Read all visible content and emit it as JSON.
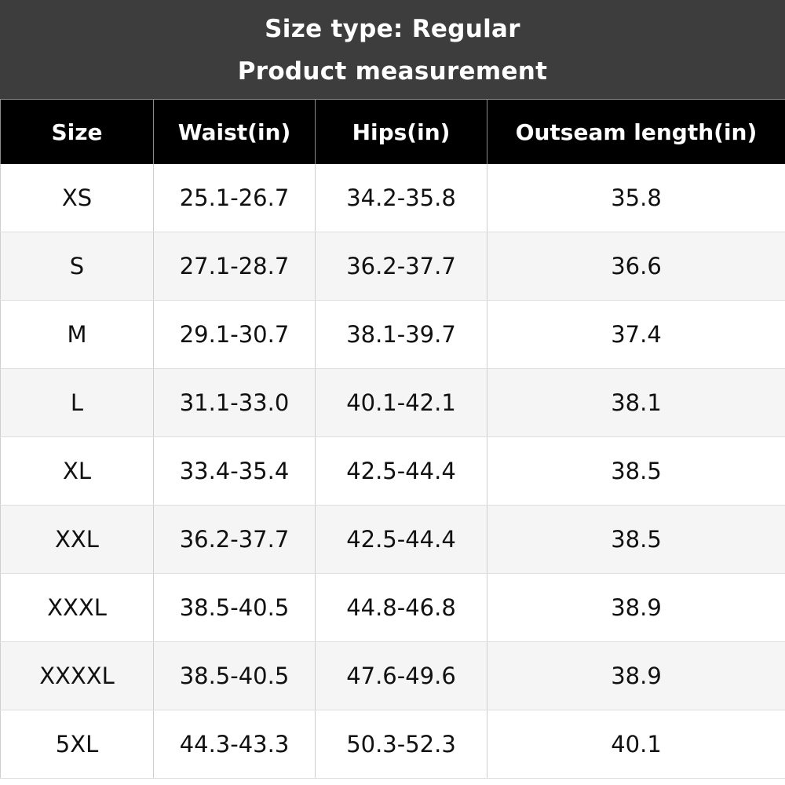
{
  "title": {
    "line1": "Size type: Regular",
    "line2": "Product measurement"
  },
  "table": {
    "headers": [
      "Size",
      "Waist(in)",
      "Hips(in)",
      "Outseam length(in)"
    ],
    "rows": [
      [
        "XS",
        "25.1-26.7",
        "34.2-35.8",
        "35.8"
      ],
      [
        "S",
        "27.1-28.7",
        "36.2-37.7",
        "36.6"
      ],
      [
        "M",
        "29.1-30.7",
        "38.1-39.7",
        "37.4"
      ],
      [
        "L",
        "31.1-33.0",
        "40.1-42.1",
        "38.1"
      ],
      [
        "XL",
        "33.4-35.4",
        "42.5-44.4",
        "38.5"
      ],
      [
        "XXL",
        "36.2-37.7",
        "42.5-44.4",
        "38.5"
      ],
      [
        "XXXL",
        "38.5-40.5",
        "44.8-46.8",
        "38.9"
      ],
      [
        "XXXXL",
        "38.5-40.5",
        "47.6-49.6",
        "38.9"
      ],
      [
        "5XL",
        "44.3-43.3",
        "50.3-52.3",
        "40.1"
      ]
    ]
  },
  "colors": {
    "title_bg": "#3d3d3d",
    "header_bg": "#000000",
    "row_alt_bg": "#f5f5f5"
  }
}
